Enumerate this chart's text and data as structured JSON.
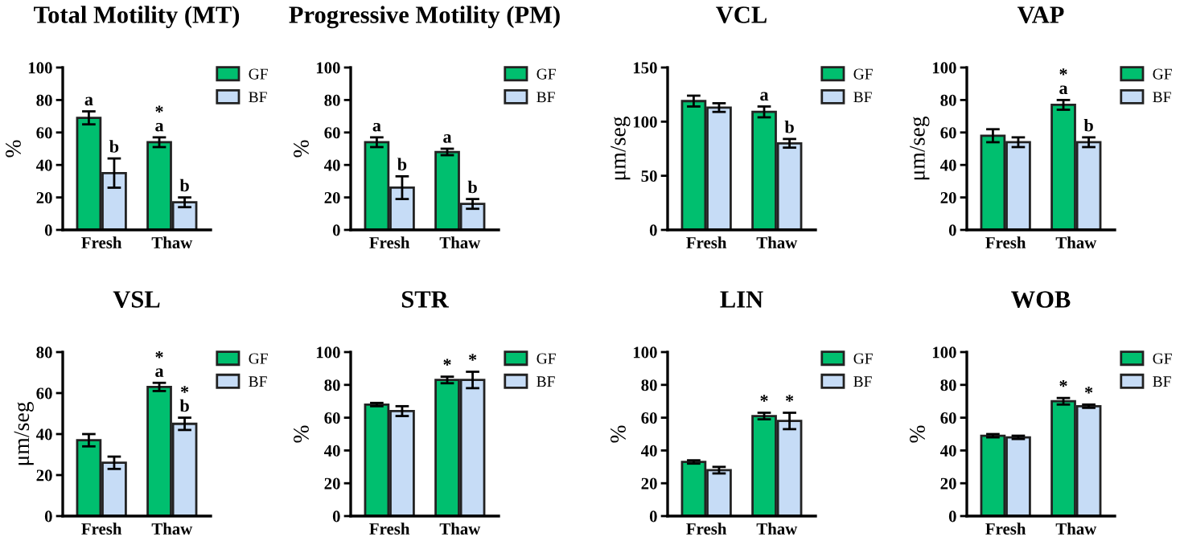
{
  "chart_data": [
    {
      "type": "bar",
      "title": "Total Motility (MT)",
      "ylabel": "%",
      "categories": [
        "Fresh",
        "Thaw"
      ],
      "ylim": [
        0,
        100
      ],
      "yticks": [
        0,
        20,
        40,
        60,
        80,
        100
      ],
      "legend": "top right",
      "series": [
        {
          "name": "GF",
          "color": "#00bf6f",
          "values": [
            69,
            54
          ],
          "errors": [
            4,
            3
          ],
          "value_labels": [
            "a",
            "*\na"
          ]
        },
        {
          "name": "BF",
          "color": "#c6dcf6",
          "values": [
            35,
            17
          ],
          "errors": [
            9,
            3
          ],
          "value_labels": [
            "b",
            "b"
          ]
        }
      ]
    },
    {
      "type": "bar",
      "title": "Progressive Motility (PM)",
      "ylabel": "%",
      "categories": [
        "Fresh",
        "Thaw"
      ],
      "ylim": [
        0,
        100
      ],
      "yticks": [
        0,
        20,
        40,
        60,
        80,
        100
      ],
      "legend": "top right",
      "series": [
        {
          "name": "GF",
          "color": "#00bf6f",
          "values": [
            54,
            48
          ],
          "errors": [
            3,
            2
          ],
          "value_labels": [
            "a",
            "a"
          ]
        },
        {
          "name": "BF",
          "color": "#c6dcf6",
          "values": [
            26,
            16
          ],
          "errors": [
            7,
            3
          ],
          "value_labels": [
            "b",
            "b"
          ]
        }
      ]
    },
    {
      "type": "bar",
      "title": "VCL",
      "ylabel": "μm/seg",
      "categories": [
        "Fresh",
        "Thaw"
      ],
      "ylim": [
        0,
        150
      ],
      "yticks": [
        0,
        50,
        100,
        150
      ],
      "legend": "top right",
      "series": [
        {
          "name": "GF",
          "color": "#00bf6f",
          "values": [
            119,
            109
          ],
          "errors": [
            5,
            5
          ],
          "value_labels": [
            null,
            "a"
          ]
        },
        {
          "name": "BF",
          "color": "#c6dcf6",
          "values": [
            113,
            80
          ],
          "errors": [
            4,
            4
          ],
          "value_labels": [
            null,
            "b"
          ]
        }
      ]
    },
    {
      "type": "bar",
      "title": "VAP",
      "ylabel": "μm/seg",
      "categories": [
        "Fresh",
        "Thaw"
      ],
      "ylim": [
        0,
        100
      ],
      "yticks": [
        0,
        20,
        40,
        60,
        80,
        100
      ],
      "legend": "top right",
      "series": [
        {
          "name": "GF",
          "color": "#00bf6f",
          "values": [
            58,
            77
          ],
          "errors": [
            4,
            3
          ],
          "value_labels": [
            null,
            "*\na"
          ]
        },
        {
          "name": "BF",
          "color": "#c6dcf6",
          "values": [
            54,
            54
          ],
          "errors": [
            3,
            3
          ],
          "value_labels": [
            null,
            "b"
          ]
        }
      ]
    },
    {
      "type": "bar",
      "title": "VSL",
      "ylabel": "μm/seg",
      "categories": [
        "Fresh",
        "Thaw"
      ],
      "ylim": [
        0,
        80
      ],
      "yticks": [
        0,
        20,
        40,
        60,
        80
      ],
      "legend": "top right",
      "series": [
        {
          "name": "GF",
          "color": "#00bf6f",
          "values": [
            37,
            63
          ],
          "errors": [
            3,
            2
          ],
          "value_labels": [
            null,
            "*\na"
          ]
        },
        {
          "name": "BF",
          "color": "#c6dcf6",
          "values": [
            26,
            45
          ],
          "errors": [
            3,
            3
          ],
          "value_labels": [
            null,
            "*\nb"
          ]
        }
      ]
    },
    {
      "type": "bar",
      "title": "STR",
      "ylabel": "%",
      "categories": [
        "Fresh",
        "Thaw"
      ],
      "ylim": [
        0,
        100
      ],
      "yticks": [
        0,
        20,
        40,
        60,
        80,
        100
      ],
      "legend": "top right",
      "series": [
        {
          "name": "GF",
          "color": "#00bf6f",
          "values": [
            68,
            83
          ],
          "errors": [
            1,
            2
          ],
          "value_labels": [
            null,
            "*"
          ]
        },
        {
          "name": "BF",
          "color": "#c6dcf6",
          "values": [
            64,
            83
          ],
          "errors": [
            3,
            5
          ],
          "value_labels": [
            null,
            "*"
          ]
        }
      ]
    },
    {
      "type": "bar",
      "title": "LIN",
      "ylabel": "%",
      "categories": [
        "Fresh",
        "Thaw"
      ],
      "ylim": [
        0,
        100
      ],
      "yticks": [
        0,
        20,
        40,
        60,
        80,
        100
      ],
      "legend": "top right",
      "series": [
        {
          "name": "GF",
          "color": "#00bf6f",
          "values": [
            33,
            61
          ],
          "errors": [
            1,
            2
          ],
          "value_labels": [
            null,
            "*"
          ]
        },
        {
          "name": "BF",
          "color": "#c6dcf6",
          "values": [
            28,
            58
          ],
          "errors": [
            2,
            5
          ],
          "value_labels": [
            null,
            "*"
          ]
        }
      ]
    },
    {
      "type": "bar",
      "title": "WOB",
      "ylabel": "%",
      "categories": [
        "Fresh",
        "Thaw"
      ],
      "ylim": [
        0,
        100
      ],
      "yticks": [
        0,
        20,
        40,
        60,
        80,
        100
      ],
      "legend": "top right",
      "series": [
        {
          "name": "GF",
          "color": "#00bf6f",
          "values": [
            49,
            70
          ],
          "errors": [
            1,
            2
          ],
          "value_labels": [
            null,
            "*"
          ]
        },
        {
          "name": "BF",
          "color": "#c6dcf6",
          "values": [
            48,
            67
          ],
          "errors": [
            1,
            1
          ],
          "value_labels": [
            null,
            "*"
          ]
        }
      ]
    }
  ]
}
